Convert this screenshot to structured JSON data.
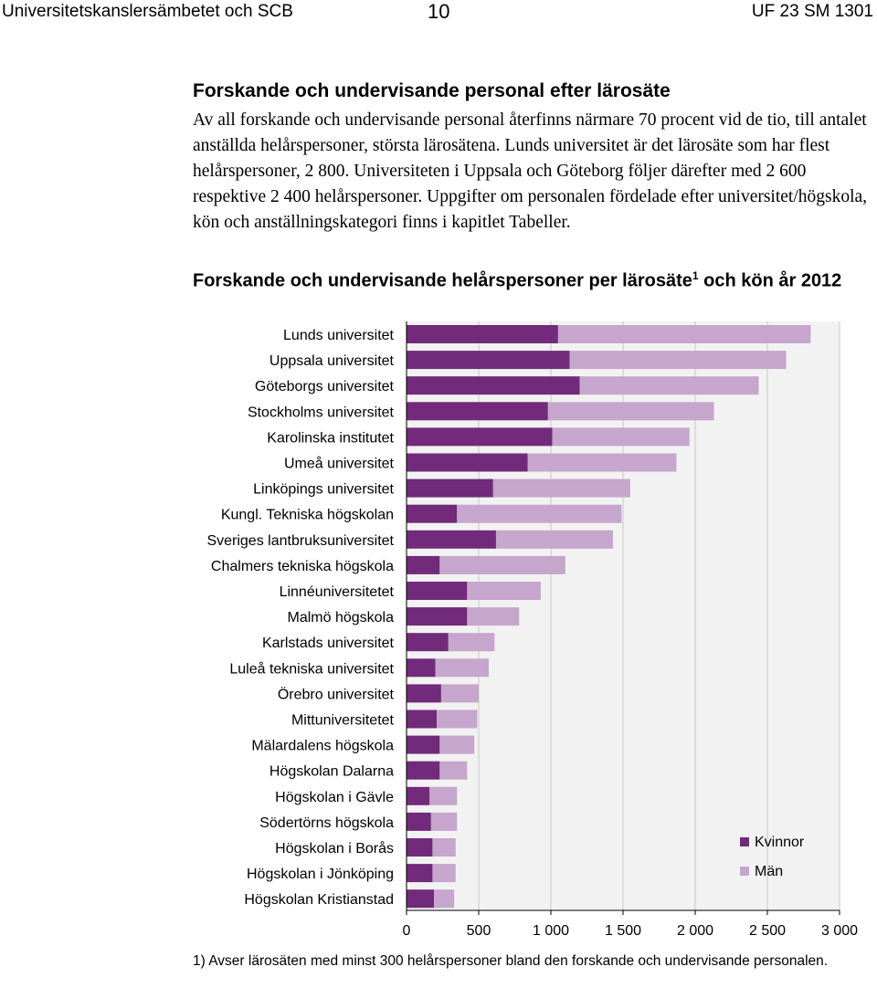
{
  "header": {
    "left": "Universitetskanslersämbetet och SCB",
    "page_number": "10",
    "right": "UF 23 SM 1301"
  },
  "section": {
    "title": "Forskande och undervisande personal efter lärosäte",
    "body": "Av all forskande och undervisande personal återfinns närmare 70 procent vid de tio, till antalet anställda helårspersoner, största lärosätena. Lunds universitet är det lärosäte som har flest helårspersoner, 2 800. Universiteten i Uppsala och Göteborg följer därefter med 2 600 respektive 2 400 helårspersoner. Uppgifter om personalen fördelade efter universitet/högskola, kön och anställningskategori finns i kapitlet Tabeller."
  },
  "chart_data": {
    "type": "bar",
    "orientation": "horizontal",
    "stacked": true,
    "title_main": "Forskande och undervisande helårspersoner per lärosäte",
    "title_sup": "1",
    "title_tail": "och kön år 2012",
    "categories": [
      "Lunds universitet",
      "Uppsala universitet",
      "Göteborgs universitet",
      "Stockholms universitet",
      "Karolinska institutet",
      "Umeå universitet",
      "Linköpings universitet",
      "Kungl. Tekniska högskolan",
      "Sveriges lantbruksuniversitet",
      "Chalmers tekniska högskola",
      "Linnéuniversitetet",
      "Malmö högskola",
      "Karlstads universitet",
      "Luleå tekniska universitet",
      "Örebro universitet",
      "Mittuniversitetet",
      "Mälardalens högskola",
      "Högskolan Dalarna",
      "Högskolan i Gävle",
      "Södertörns högskola",
      "Högskolan i Borås",
      "Högskolan i Jönköping",
      "Högskolan Kristianstad"
    ],
    "series": [
      {
        "name": "Kvinnor",
        "color": "#722a7a",
        "values": [
          1050,
          1130,
          1200,
          980,
          1010,
          840,
          600,
          350,
          620,
          230,
          420,
          420,
          290,
          200,
          240,
          210,
          230,
          230,
          160,
          170,
          180,
          180,
          190
        ]
      },
      {
        "name": "Män",
        "color": "#c6a6cc",
        "values": [
          1750,
          1500,
          1240,
          1150,
          950,
          1030,
          950,
          1140,
          810,
          870,
          510,
          360,
          320,
          370,
          260,
          280,
          240,
          190,
          190,
          180,
          160,
          160,
          140
        ]
      }
    ],
    "xlim": [
      0,
      3000
    ],
    "x_ticks": [
      0,
      500,
      1000,
      1500,
      2000,
      2500,
      3000
    ],
    "x_tick_labels": [
      "0",
      "500",
      "1 000",
      "1 500",
      "2 000",
      "2 500",
      "3 000"
    ],
    "grid": true,
    "plot_background": "#f2f2f2",
    "legend_position": "bottom-right"
  },
  "footnote": "1) Avser lärosäten med minst 300 helårspersoner bland den forskande och undervisande personalen."
}
